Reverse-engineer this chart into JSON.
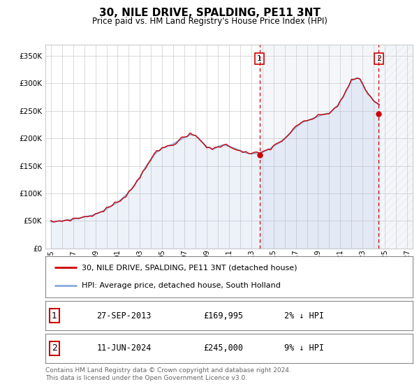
{
  "title": "30, NILE DRIVE, SPALDING, PE11 3NT",
  "subtitle": "Price paid vs. HM Land Registry's House Price Index (HPI)",
  "footer": "Contains HM Land Registry data © Crown copyright and database right 2024.\nThis data is licensed under the Open Government Licence v3.0.",
  "legend_line1": "30, NILE DRIVE, SPALDING, PE11 3NT (detached house)",
  "legend_line2": "HPI: Average price, detached house, South Holland",
  "sale1_date": "27-SEP-2013",
  "sale1_price": "£169,995",
  "sale1_hpi": "2% ↓ HPI",
  "sale2_date": "11-JUN-2024",
  "sale2_price": "£245,000",
  "sale2_hpi": "9% ↓ HPI",
  "hpi_color": "#88aadd",
  "price_color": "#cc0000",
  "marker_color": "#cc0000",
  "background_color": "#ffffff",
  "grid_color": "#cccccc",
  "ylim": [
    0,
    370000
  ],
  "xlim_start": 1994.5,
  "xlim_end": 2027.5,
  "sale1_x": 2013.74,
  "sale1_y": 169995,
  "sale2_x": 2024.44,
  "sale2_y": 245000,
  "hatch_start": 2024.5,
  "years_hpi": [
    1995.0,
    1995.25,
    1995.5,
    1995.75,
    1996.0,
    1996.25,
    1996.5,
    1996.75,
    1997.0,
    1997.25,
    1997.5,
    1997.75,
    1998.0,
    1998.25,
    1998.5,
    1998.75,
    1999.0,
    1999.25,
    1999.5,
    1999.75,
    2000.0,
    2000.25,
    2000.5,
    2000.75,
    2001.0,
    2001.25,
    2001.5,
    2001.75,
    2002.0,
    2002.25,
    2002.5,
    2002.75,
    2003.0,
    2003.25,
    2003.5,
    2003.75,
    2004.0,
    2004.25,
    2004.5,
    2004.75,
    2005.0,
    2005.25,
    2005.5,
    2005.75,
    2006.0,
    2006.25,
    2006.5,
    2006.75,
    2007.0,
    2007.25,
    2007.5,
    2007.75,
    2008.0,
    2008.25,
    2008.5,
    2008.75,
    2009.0,
    2009.25,
    2009.5,
    2009.75,
    2010.0,
    2010.25,
    2010.5,
    2010.75,
    2011.0,
    2011.25,
    2011.5,
    2011.75,
    2012.0,
    2012.25,
    2012.5,
    2012.75,
    2013.0,
    2013.25,
    2013.5,
    2013.75,
    2014.0,
    2014.25,
    2014.5,
    2014.75,
    2015.0,
    2015.25,
    2015.5,
    2015.75,
    2016.0,
    2016.25,
    2016.5,
    2016.75,
    2017.0,
    2017.25,
    2017.5,
    2017.75,
    2018.0,
    2018.25,
    2018.5,
    2018.75,
    2019.0,
    2019.25,
    2019.5,
    2019.75,
    2020.0,
    2020.25,
    2020.5,
    2020.75,
    2021.0,
    2021.25,
    2021.5,
    2021.75,
    2022.0,
    2022.25,
    2022.5,
    2022.75,
    2023.0,
    2023.25,
    2023.5,
    2023.75,
    2024.0,
    2024.25,
    2024.5
  ],
  "hpi_values": [
    48000,
    48500,
    49000,
    49500,
    50000,
    50800,
    51500,
    52200,
    53000,
    54000,
    55000,
    56000,
    57000,
    58000,
    59000,
    60500,
    62000,
    64000,
    66000,
    69000,
    72000,
    75000,
    78000,
    81000,
    84000,
    88000,
    92000,
    97000,
    102000,
    108000,
    115000,
    122000,
    130000,
    139000,
    148000,
    155000,
    163000,
    169000,
    175000,
    178000,
    182000,
    184000,
    186000,
    188000,
    190000,
    193000,
    196000,
    199000,
    202000,
    204000,
    207000,
    206000,
    205000,
    200000,
    195000,
    190000,
    185000,
    183000,
    180000,
    182000,
    185000,
    187000,
    188000,
    187000,
    186000,
    184000,
    182000,
    180000,
    178000,
    176000,
    174000,
    173000,
    172000,
    172500,
    173000,
    173500,
    175000,
    177000,
    180000,
    182000,
    186000,
    189000,
    192000,
    196000,
    200000,
    205000,
    210000,
    215000,
    220000,
    224000,
    228000,
    231000,
    232000,
    234000,
    236000,
    238000,
    240000,
    242000,
    244000,
    245000,
    246000,
    250000,
    255000,
    260000,
    268000,
    276000,
    285000,
    295000,
    305000,
    308000,
    310000,
    308000,
    298000,
    288000,
    282000,
    275000,
    268000,
    265000,
    262000
  ]
}
